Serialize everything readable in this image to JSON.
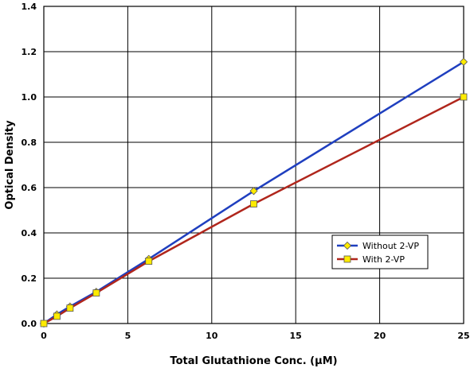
{
  "chart_data": {
    "type": "line",
    "xlabel": "Total Glutathione Conc. (μM)",
    "ylabel": "Optical Density",
    "xlim": [
      0,
      25
    ],
    "ylim": [
      0,
      1.4
    ],
    "xticks": [
      0,
      5,
      10,
      15,
      20,
      25
    ],
    "yticks": [
      0.0,
      0.2,
      0.4,
      0.6,
      0.8,
      1.0,
      1.2,
      1.4
    ],
    "grid": true,
    "legend_position": "lower-right",
    "series": [
      {
        "name": "Without 2-VP",
        "color": "#1f3fbf",
        "marker": "diamond",
        "marker_color": "#ffeb00",
        "x": [
          0,
          0.78,
          1.56,
          3.125,
          6.25,
          12.5,
          25
        ],
        "y": [
          0.0,
          0.04,
          0.075,
          0.14,
          0.285,
          0.585,
          1.155
        ]
      },
      {
        "name": "With 2-VP",
        "color": "#b0261c",
        "marker": "square",
        "marker_color": "#ffeb00",
        "x": [
          0,
          0.78,
          1.56,
          3.125,
          6.25,
          12.5,
          25
        ],
        "y": [
          0.0,
          0.032,
          0.068,
          0.135,
          0.275,
          0.528,
          1.0
        ]
      }
    ]
  }
}
